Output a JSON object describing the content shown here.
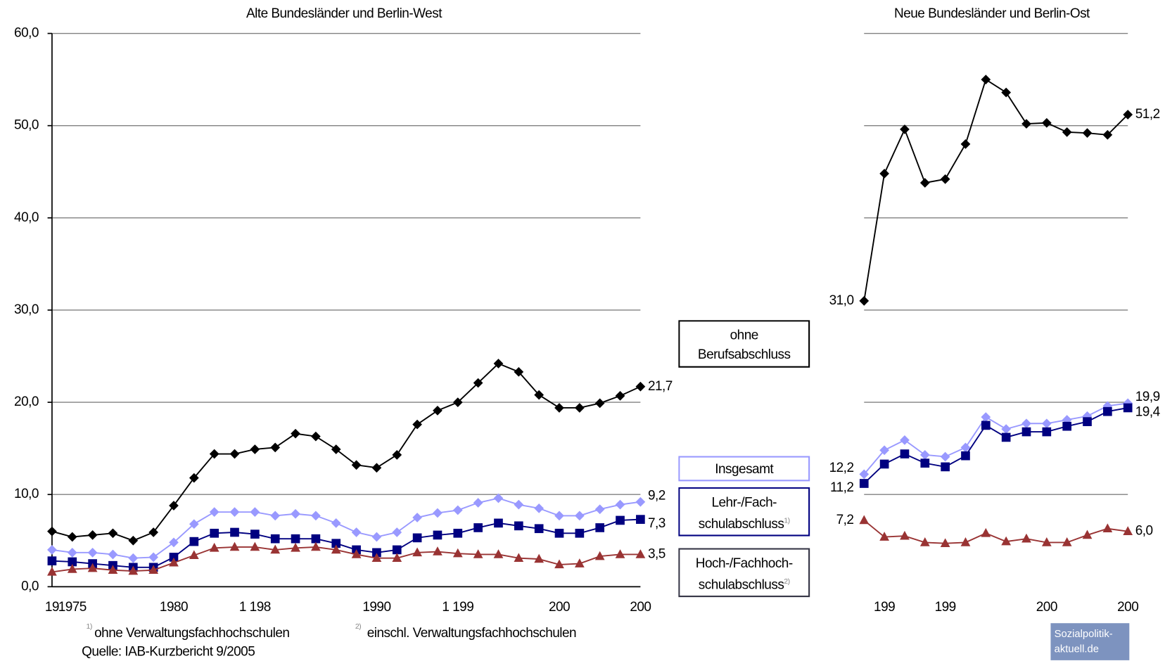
{
  "chart_data": [
    {
      "type": "line",
      "title": "Alte Bundesländer und Berlin-West",
      "categories": [
        "19",
        "1975",
        null,
        null,
        null,
        null,
        "1980",
        null,
        null,
        null,
        "1 198",
        null,
        null,
        null,
        null,
        null,
        "1990",
        null,
        null,
        null,
        "1 199",
        null,
        null,
        null,
        null,
        "200",
        null,
        null,
        null,
        "200"
      ],
      "ylim": [
        0,
        60
      ],
      "yticks": [
        {
          "value": 0,
          "label": "0,0"
        },
        {
          "value": 10,
          "label": "10,0"
        },
        {
          "value": 20,
          "label": "20,0"
        },
        {
          "value": 30,
          "label": "30,0"
        },
        {
          "value": 40,
          "label": "40,0"
        },
        {
          "value": 50,
          "label": "50,0"
        },
        {
          "value": 60,
          "label": "60,0"
        }
      ],
      "grid": true,
      "series": [
        {
          "name": "ohne\nBerufsabschluss",
          "color": "#000000",
          "marker": "diamond",
          "values": [
            6.0,
            5.4,
            5.6,
            5.8,
            5.0,
            5.9,
            8.8,
            11.8,
            14.4,
            14.4,
            14.9,
            15.1,
            16.6,
            16.3,
            14.9,
            13.2,
            12.9,
            14.3,
            17.6,
            19.1,
            20.0,
            22.1,
            24.2,
            23.3,
            20.8,
            19.4,
            19.4,
            19.9,
            20.7,
            21.7
          ],
          "value_labels": [
            null,
            null,
            null,
            null,
            null,
            null,
            null,
            null,
            null,
            null,
            null,
            null,
            null,
            null,
            null,
            null,
            null,
            null,
            null,
            null,
            null,
            null,
            null,
            null,
            null,
            null,
            null,
            null,
            null,
            "21,7"
          ]
        },
        {
          "name": "Insgesamt",
          "color": "#9999ff",
          "marker": "diamond",
          "values": [
            4.0,
            3.7,
            3.7,
            3.5,
            3.1,
            3.2,
            4.8,
            6.8,
            8.1,
            8.1,
            8.1,
            7.7,
            7.9,
            7.7,
            6.9,
            5.9,
            5.4,
            5.9,
            7.5,
            8.0,
            8.3,
            9.1,
            9.6,
            8.9,
            8.5,
            7.7,
            7.7,
            8.4,
            8.9,
            9.2
          ],
          "value_labels": [
            null,
            null,
            null,
            null,
            null,
            null,
            null,
            null,
            null,
            null,
            null,
            null,
            null,
            null,
            null,
            null,
            null,
            null,
            null,
            null,
            null,
            null,
            null,
            null,
            null,
            null,
            null,
            null,
            null,
            "9,2"
          ]
        },
        {
          "name": "Lehr-/Fach-\nschulabschluss",
          "note": "1)",
          "color": "#000080",
          "marker": "square",
          "values": [
            2.8,
            2.7,
            2.5,
            2.3,
            2.1,
            2.1,
            3.2,
            4.9,
            5.8,
            5.9,
            5.7,
            5.2,
            5.2,
            5.2,
            4.7,
            4.0,
            3.7,
            4.0,
            5.3,
            5.6,
            5.8,
            6.4,
            6.9,
            6.6,
            6.3,
            5.8,
            5.8,
            6.4,
            7.2,
            7.3
          ],
          "value_labels": [
            null,
            null,
            null,
            null,
            null,
            null,
            null,
            null,
            null,
            null,
            null,
            null,
            null,
            null,
            null,
            null,
            null,
            null,
            null,
            null,
            null,
            null,
            null,
            null,
            null,
            null,
            null,
            null,
            null,
            "7,3"
          ]
        },
        {
          "name": "Hoch-/Fachhoch-\nschulabschluss",
          "note": "2)",
          "color": "#993333",
          "marker": "triangle",
          "values": [
            1.6,
            1.9,
            2.0,
            1.8,
            1.7,
            1.8,
            2.6,
            3.4,
            4.2,
            4.3,
            4.3,
            4.0,
            4.2,
            4.3,
            4.0,
            3.5,
            3.1,
            3.1,
            3.7,
            3.8,
            3.6,
            3.5,
            3.5,
            3.1,
            3.0,
            2.4,
            2.5,
            3.3,
            3.5,
            3.5
          ],
          "value_labels": [
            null,
            null,
            null,
            null,
            null,
            null,
            null,
            null,
            null,
            null,
            null,
            null,
            null,
            null,
            null,
            null,
            null,
            null,
            null,
            null,
            null,
            null,
            null,
            null,
            null,
            null,
            null,
            null,
            null,
            "3,5"
          ]
        }
      ]
    },
    {
      "type": "line",
      "title": "Neue Bundesländer und Berlin-Ost",
      "categories": [
        null,
        "199",
        null,
        null,
        "199",
        null,
        null,
        null,
        null,
        "200",
        null,
        null,
        null,
        "200"
      ],
      "ylim": [
        0,
        60
      ],
      "yticks": [
        0,
        10,
        20,
        30,
        40,
        50,
        60
      ],
      "ytick_labels": false,
      "grid": true,
      "series": [
        {
          "color": "#000000",
          "marker": "diamond",
          "values": [
            31.0,
            44.8,
            49.6,
            43.8,
            44.2,
            48.0,
            55.0,
            53.6,
            50.2,
            50.3,
            49.3,
            49.2,
            49.0,
            51.2
          ],
          "value_labels": [
            "31,0",
            null,
            null,
            null,
            null,
            null,
            null,
            null,
            null,
            null,
            null,
            null,
            null,
            "51,2"
          ]
        },
        {
          "color": "#9999ff",
          "marker": "diamond",
          "values": [
            12.2,
            14.8,
            15.9,
            14.3,
            14.1,
            15.1,
            18.4,
            17.1,
            17.7,
            17.7,
            18.1,
            18.5,
            19.6,
            19.9
          ],
          "value_labels": [
            "12,2",
            null,
            null,
            null,
            null,
            null,
            null,
            null,
            null,
            null,
            null,
            null,
            null,
            "19,9"
          ]
        },
        {
          "color": "#000080",
          "marker": "square",
          "values": [
            11.2,
            13.3,
            14.4,
            13.4,
            13.0,
            14.2,
            17.5,
            16.2,
            16.8,
            16.8,
            17.4,
            17.9,
            19.0,
            19.4
          ],
          "value_labels": [
            "11,2",
            null,
            null,
            null,
            null,
            null,
            null,
            null,
            null,
            null,
            null,
            null,
            null,
            "19,4"
          ]
        },
        {
          "color": "#993333",
          "marker": "triangle",
          "values": [
            7.2,
            5.4,
            5.5,
            4.8,
            4.7,
            4.8,
            5.8,
            4.9,
            5.2,
            4.8,
            4.8,
            5.6,
            6.3,
            6.0
          ],
          "value_labels": [
            "7,2",
            null,
            null,
            null,
            null,
            null,
            null,
            null,
            null,
            null,
            null,
            null,
            null,
            "6,0"
          ]
        }
      ]
    }
  ],
  "footnotes": {
    "mark1": "1)",
    "text1": "ohne Verwaltungsfachhochschulen",
    "mark2": "2)",
    "text2": "einschl. Verwaltungsfachhochschulen",
    "source": "Quelle: IAB-Kurzbericht 9/2005"
  },
  "logo": "Sozialpolitik-\naktuell.de"
}
